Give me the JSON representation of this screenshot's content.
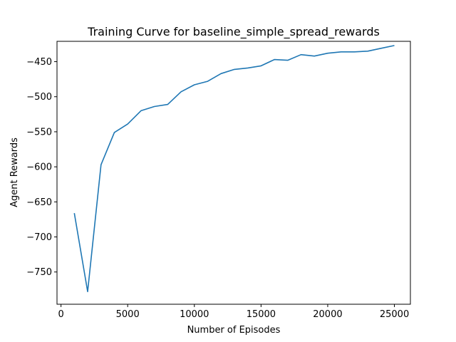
{
  "chart_data": {
    "type": "line",
    "title": "Training Curve for baseline_simple_spread_rewards",
    "xlabel": "Number of Episodes",
    "ylabel": "Agent Rewards",
    "xlim": [
      -300,
      26200
    ],
    "ylim": [
      -796,
      -421
    ],
    "grid": false,
    "xticks": [
      0,
      5000,
      10000,
      15000,
      20000,
      25000
    ],
    "yticks": [
      -750,
      -700,
      -650,
      -600,
      -550,
      -500,
      -450
    ],
    "series": [
      {
        "color": "#1f77b4",
        "x": [
          1000,
          2000,
          3000,
          4000,
          5000,
          6000,
          7000,
          8000,
          9000,
          10000,
          11000,
          12000,
          13000,
          14000,
          15000,
          16000,
          17000,
          18000,
          19000,
          20000,
          21000,
          22000,
          23000,
          24000,
          25000
        ],
        "y": [
          -666,
          -778,
          -597,
          -551,
          -539,
          -520,
          -514,
          -511,
          -493,
          -483,
          -478,
          -467,
          -461,
          -459,
          -456,
          -447,
          -448,
          -440,
          -442,
          -438,
          -436,
          -436,
          -435,
          -431,
          -427
        ]
      }
    ]
  }
}
